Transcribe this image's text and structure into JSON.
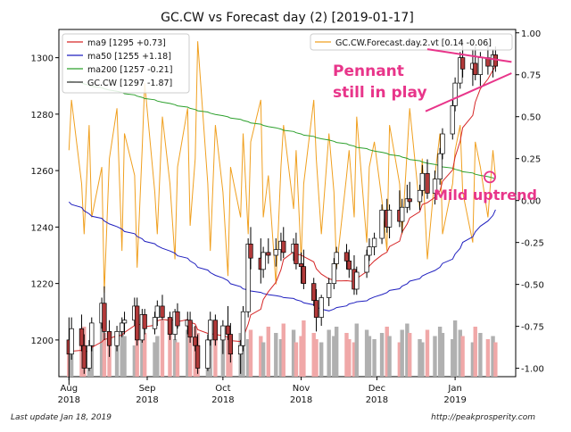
{
  "chart_data": {
    "type": "candlestick",
    "title": "GC.CW vs Forecast day (2)  [2019-01-17]",
    "xlabel": "",
    "ylabel": "",
    "ylim": [
      1187,
      1310
    ],
    "y2lim": [
      -1.05,
      1.02
    ],
    "xlim": [
      "2018-07-28",
      "2019-01-25"
    ],
    "grid": false,
    "y_ticks": [
      1200,
      1220,
      1240,
      1260,
      1280,
      1300
    ],
    "y2_ticks": [
      1.0,
      0.75,
      0.5,
      0.25,
      0.0,
      -0.25,
      -0.5,
      -0.75,
      -1.0
    ],
    "y2_tick_labels": [
      "1.00",
      "0.75",
      "0.50",
      "0.25",
      "0.00",
      "-0.25",
      "-0.50",
      "-0.75",
      "-1.00"
    ],
    "x_ticks": [
      {
        "date": "2018-08-01",
        "label": [
          "Aug",
          "2018"
        ]
      },
      {
        "date": "2018-09-01",
        "label": [
          "Sep",
          "2018"
        ]
      },
      {
        "date": "2018-10-01",
        "label": [
          "Oct",
          "2018"
        ]
      },
      {
        "date": "2018-11-01",
        "label": [
          "Nov",
          "2018"
        ]
      },
      {
        "date": "2018-12-01",
        "label": [
          "Dec",
          "2018"
        ]
      },
      {
        "date": "2019-01-01",
        "label": [
          "Jan",
          "2019"
        ]
      }
    ],
    "legend_left": {
      "placement": "top-left",
      "entries": [
        {
          "label": "ma9 [1295 +0.73]",
          "color": "#d62728"
        },
        {
          "label": "ma50 [1255 +1.18]",
          "color": "#1f1fbf"
        },
        {
          "label": "ma200 [1257 -0.21]",
          "color": "#2ca02c"
        },
        {
          "label": "GC.CW [1297 -1.87]",
          "color": "#333333"
        }
      ]
    },
    "legend_right": {
      "placement": "top-right",
      "entries": [
        {
          "label": "GC.CW.Forecast.day.2.vt [0.14 -0.06]",
          "color": "#f0a020"
        }
      ]
    },
    "candles_ohlc": [
      [
        1200,
        1208,
        1184,
        1195
      ],
      [
        1195,
        1208,
        1193,
        1204
      ],
      [
        1204,
        1209,
        1196,
        1198
      ],
      [
        1198,
        1202,
        1188,
        1190
      ],
      [
        1190,
        1200,
        1189,
        1198
      ],
      [
        1198,
        1208,
        1196,
        1206
      ],
      [
        1206,
        1215,
        1204,
        1213
      ],
      [
        1213,
        1219,
        1200,
        1203
      ],
      [
        1203,
        1207,
        1194,
        1198
      ],
      [
        1198,
        1205,
        1196,
        1203
      ],
      [
        1203,
        1208,
        1201,
        1206
      ],
      [
        1206,
        1210,
        1202,
        1207
      ],
      [
        1207,
        1215,
        1205,
        1212
      ],
      [
        1212,
        1215,
        1198,
        1200
      ],
      [
        1200,
        1211,
        1199,
        1209
      ],
      [
        1209,
        1211,
        1202,
        1204
      ],
      [
        1204,
        1210,
        1202,
        1208
      ],
      [
        1208,
        1214,
        1205,
        1212
      ],
      [
        1212,
        1216,
        1207,
        1208
      ],
      [
        1208,
        1210,
        1200,
        1202
      ],
      [
        1202,
        1211,
        1200,
        1210
      ],
      [
        1210,
        1213,
        1204,
        1205
      ],
      [
        1205,
        1210,
        1202,
        1207
      ],
      [
        1207,
        1210,
        1199,
        1201
      ],
      [
        1201,
        1205,
        1196,
        1198
      ],
      [
        1198,
        1202,
        1188,
        1190
      ],
      [
        1190,
        1202,
        1189,
        1200
      ],
      [
        1200,
        1210,
        1198,
        1207
      ],
      [
        1207,
        1209,
        1198,
        1200
      ],
      [
        1200,
        1207,
        1195,
        1205
      ],
      [
        1205,
        1212,
        1200,
        1202
      ],
      [
        1202,
        1206,
        1192,
        1195
      ],
      [
        1195,
        1200,
        1188,
        1198
      ],
      [
        1198,
        1212,
        1196,
        1210
      ],
      [
        1210,
        1236,
        1208,
        1234
      ],
      [
        1234,
        1240,
        1225,
        1229
      ],
      [
        1229,
        1236,
        1220,
        1225
      ],
      [
        1225,
        1233,
        1222,
        1231
      ],
      [
        1231,
        1236,
        1227,
        1230
      ],
      [
        1230,
        1236,
        1226,
        1232
      ],
      [
        1232,
        1238,
        1228,
        1235
      ],
      [
        1235,
        1240,
        1229,
        1231
      ],
      [
        1231,
        1236,
        1228,
        1234
      ],
      [
        1234,
        1238,
        1225,
        1227
      ],
      [
        1227,
        1231,
        1220,
        1226
      ],
      [
        1226,
        1232,
        1218,
        1220
      ],
      [
        1220,
        1222,
        1212,
        1214
      ],
      [
        1214,
        1218,
        1203,
        1208
      ],
      [
        1208,
        1216,
        1205,
        1215
      ],
      [
        1215,
        1222,
        1212,
        1220
      ],
      [
        1220,
        1229,
        1218,
        1227
      ],
      [
        1227,
        1233,
        1225,
        1231
      ],
      [
        1231,
        1234,
        1225,
        1228
      ],
      [
        1228,
        1232,
        1222,
        1225
      ],
      [
        1225,
        1230,
        1216,
        1218
      ],
      [
        1218,
        1226,
        1216,
        1224
      ],
      [
        1224,
        1232,
        1222,
        1230
      ],
      [
        1230,
        1236,
        1228,
        1233
      ],
      [
        1233,
        1238,
        1230,
        1236
      ],
      [
        1236,
        1248,
        1234,
        1246
      ],
      [
        1246,
        1250,
        1238,
        1240
      ],
      [
        1240,
        1248,
        1236,
        1246
      ],
      [
        1246,
        1253,
        1240,
        1242
      ],
      [
        1242,
        1250,
        1238,
        1247
      ],
      [
        1247,
        1255,
        1245,
        1250
      ],
      [
        1250,
        1256,
        1246,
        1249
      ],
      [
        1249,
        1255,
        1246,
        1253
      ],
      [
        1253,
        1262,
        1251,
        1259
      ],
      [
        1259,
        1264,
        1250,
        1252
      ],
      [
        1252,
        1260,
        1248,
        1257
      ],
      [
        1257,
        1268,
        1255,
        1266
      ],
      [
        1266,
        1275,
        1264,
        1273
      ],
      [
        1273,
        1285,
        1271,
        1283
      ],
      [
        1283,
        1293,
        1281,
        1291
      ],
      [
        1291,
        1302,
        1289,
        1300
      ],
      [
        1300,
        1306,
        1293,
        1296
      ],
      [
        1296,
        1303,
        1290,
        1298
      ],
      [
        1298,
        1304,
        1292,
        1294
      ],
      [
        1294,
        1302,
        1290,
        1300
      ],
      [
        1300,
        1305,
        1294,
        1297
      ],
      [
        1297,
        1303,
        1293,
        1301
      ],
      [
        1301,
        1304,
        1295,
        1297
      ]
    ],
    "forecast_values": [
      0.3,
      0.6,
      0.1,
      -0.2,
      0.45,
      -0.1,
      0.2,
      -0.55,
      0.25,
      0.55,
      -0.3,
      0.4,
      0.15,
      -0.4,
      0.3,
      0.7,
      0.05,
      -0.2,
      0.5,
      0.1,
      -0.35,
      0.2,
      0.55,
      -0.15,
      0.25,
      0.95,
      0.1,
      -0.3,
      0.45,
      0.05,
      -0.45,
      0.2,
      -0.1,
      0.4,
      -0.2,
      0.35,
      0.6,
      -0.1,
      0.15,
      -0.5,
      0.2,
      0.45,
      -0.05,
      0.3,
      -0.35,
      0.1,
      0.6,
      0.25,
      -0.2,
      0.4,
      0.05,
      -0.4,
      0.15,
      0.3,
      -0.1,
      0.5,
      -0.25,
      0.2,
      0.35,
      0.0,
      -0.3,
      0.45,
      0.1,
      -0.2,
      0.3,
      0.55,
      -0.05,
      0.25,
      -0.35,
      0.15,
      0.4,
      -0.2,
      0.1,
      0.3,
      0.45,
      0.05,
      -0.25,
      0.35,
      0.2,
      -0.1,
      0.3,
      0.14
    ],
    "volume_rel": [
      0.55,
      0.75,
      0.6,
      0.8,
      0.5,
      0.65,
      0.85,
      0.7,
      0.55,
      0.6,
      0.75,
      0.65,
      0.5,
      0.8,
      0.6,
      0.7,
      0.55,
      0.65,
      0.9,
      0.7,
      0.6,
      0.55,
      0.75,
      0.65,
      0.8,
      0.7,
      0.5,
      0.6,
      0.85,
      0.75,
      0.65,
      0.55,
      0.7,
      0.95,
      0.6,
      0.75,
      0.65,
      0.55,
      0.8,
      0.7,
      0.6,
      0.85,
      0.75,
      0.55,
      0.65,
      0.9,
      0.7,
      0.6,
      0.55,
      0.75,
      0.65,
      0.8,
      0.7,
      0.6,
      0.55,
      0.85,
      0.75,
      0.65,
      0.6,
      0.7,
      0.8,
      0.65,
      0.55,
      0.75,
      0.85,
      0.7,
      0.6,
      0.55,
      0.75,
      0.65,
      0.8,
      0.7,
      0.6,
      0.9,
      0.75,
      0.65,
      0.55,
      0.8,
      0.7,
      0.6,
      0.65,
      0.55
    ],
    "annotations": [
      {
        "text_lines": [
          "Pennant",
          "still in play"
        ],
        "color": "#e8358a"
      },
      {
        "text_lines": [
          "Mild uptrend"
        ],
        "color": "#e8358a"
      }
    ]
  },
  "footer": {
    "left": "Last update Jan 18, 2019",
    "right": "http://peakprosperity.com"
  }
}
